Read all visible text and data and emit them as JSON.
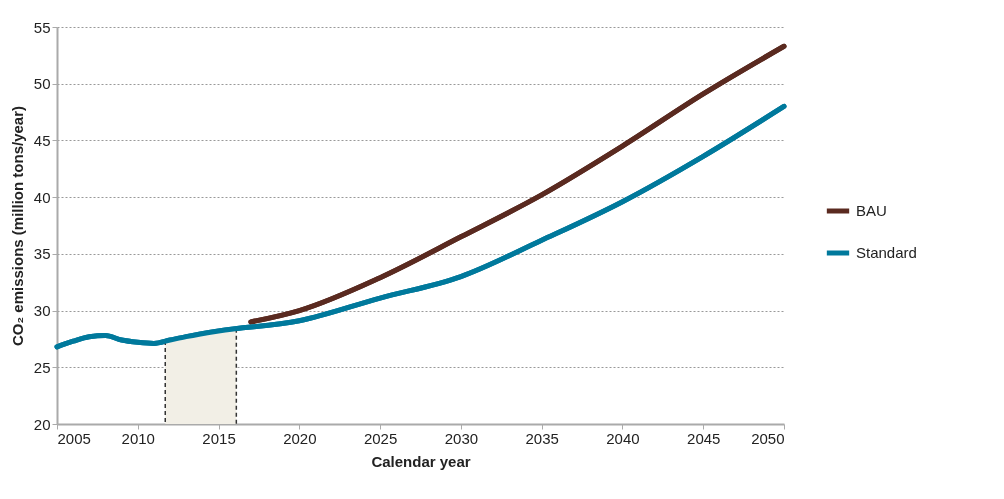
{
  "chart_data": {
    "type": "line",
    "xlabel": "Calendar year",
    "ylabel": "CO₂ emissions (million tons/year)",
    "xlim": [
      2005,
      2050
    ],
    "xticks": [
      2005,
      2010,
      2015,
      2020,
      2025,
      2030,
      2035,
      2040,
      2045,
      2050
    ],
    "ylim": [
      20,
      55
    ],
    "yticks": [
      20,
      25,
      30,
      35,
      40,
      45,
      50,
      55
    ],
    "grid": "y",
    "legend": "right",
    "marker": "none",
    "line_style": "solid",
    "bands": [
      {
        "axis": "x",
        "from": 2011.7,
        "to": 2016.1,
        "color": "#f2efe6"
      }
    ],
    "ref_lines": [
      {
        "axis": "x",
        "value": 2011.7,
        "color": "#333333",
        "line_style": "dashed"
      },
      {
        "axis": "x",
        "value": 2016.1,
        "color": "#333333",
        "line_style": "dashed"
      }
    ],
    "series": [
      {
        "name": "BAU",
        "color": "#5a2a20",
        "x": [
          2017,
          2020,
          2025,
          2030,
          2035,
          2040,
          2045,
          2050
        ],
        "values": [
          29.0,
          30.0,
          32.9,
          36.5,
          40.2,
          44.5,
          49.1,
          53.3
        ]
      },
      {
        "name": "Standard",
        "color": "#00799c",
        "x": [
          2005,
          2006,
          2007,
          2008,
          2009,
          2010,
          2011,
          2012,
          2013,
          2015,
          2020,
          2025,
          2030,
          2035,
          2040,
          2045,
          2050
        ],
        "values": [
          26.8,
          27.3,
          27.7,
          27.8,
          27.4,
          27.2,
          27.1,
          27.4,
          27.7,
          28.2,
          29.1,
          31.1,
          33.0,
          36.2,
          39.6,
          43.6,
          48.0
        ]
      }
    ]
  }
}
